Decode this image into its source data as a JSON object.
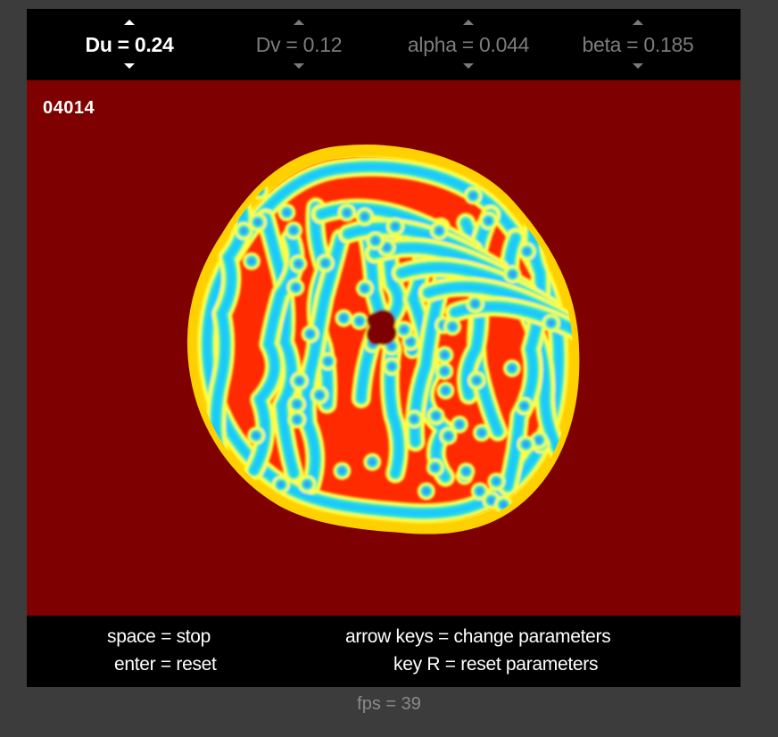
{
  "parameters": [
    {
      "name": "Du",
      "value": "0.24",
      "active": true
    },
    {
      "name": "Dv",
      "value": "0.12",
      "active": false
    },
    {
      "name": "alpha",
      "value": "0.044",
      "active": false
    },
    {
      "name": "beta",
      "value": "0.185",
      "active": false
    }
  ],
  "simulation": {
    "frame_counter": "04014",
    "background_color": "#7f0000",
    "pattern_colors": [
      "#ff2a00",
      "#ffd000",
      "#ffff40",
      "#2ce6c0",
      "#1ec8ff",
      "#30a0ff"
    ]
  },
  "help": {
    "space": "space = stop",
    "enter": "enter = reset",
    "arrows": "arrow keys = change parameters",
    "key_r": "key R = reset parameters"
  },
  "status": {
    "fps": "fps = 39"
  }
}
